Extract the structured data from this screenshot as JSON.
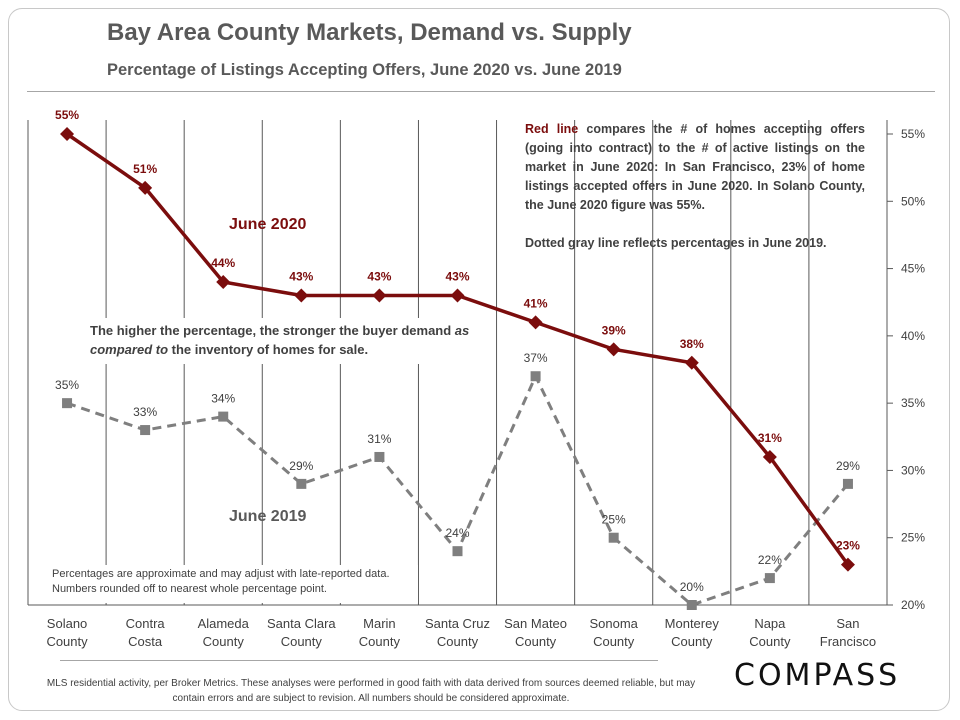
{
  "header": {
    "title": "Bay Area County Markets, Demand vs. Supply",
    "subtitle": "Percentage of Listings Accepting Offers, June 2020 vs. June 2019"
  },
  "notes": {
    "red_lead": "Red line",
    "red_text": " compares the # of homes accepting offers (going into contract) to the # of active listings on the market in June 2020: In San Francisco, 23% of home listings accepted offers in June 2020. In Solano County, the June 2020 figure was 55%.",
    "gray_text": "Dotted gray line reflects percentages in June 2019.",
    "demand_a": "The higher the percentage, the stronger the buyer demand ",
    "demand_b": "as compared to",
    "demand_c": " the inventory of homes for sale.",
    "approx": "Percentages are approximate and may adjust with late-reported data. Numbers rounded off to nearest whole percentage point."
  },
  "footer": {
    "source": "MLS residential activity, per Broker Metrics. These analyses were performed in good faith with data derived from sources deemed reliable, but may contain errors and are subject to revision. All numbers should be considered approximate.",
    "logo": "COMPASS"
  },
  "colors": {
    "june2020": "#7b0d0d",
    "june2019": "#7f7f7f",
    "grid": "#595959",
    "text": "#404040"
  },
  "chart_data": {
    "type": "line",
    "title": "Bay Area County Markets, Demand vs. Supply",
    "subtitle": "Percentage of Listings Accepting Offers, June 2020 vs. June 2019",
    "categories": [
      [
        "Solano",
        "County"
      ],
      [
        "Contra",
        "Costa"
      ],
      [
        "Alameda",
        "County"
      ],
      [
        "Santa Clara",
        "County"
      ],
      [
        "Marin",
        "County"
      ],
      [
        "Santa Cruz",
        "County"
      ],
      [
        "San Mateo",
        "County"
      ],
      [
        "Sonoma",
        "County"
      ],
      [
        "Monterey",
        "County"
      ],
      [
        "Napa",
        "County"
      ],
      [
        "San",
        "Francisco"
      ]
    ],
    "series": [
      {
        "name": "June 2020",
        "values": [
          55,
          51,
          44,
          43,
          43,
          43,
          41,
          39,
          38,
          31,
          23
        ],
        "style": "solid-diamond"
      },
      {
        "name": "June 2019",
        "values": [
          35,
          33,
          34,
          29,
          31,
          24,
          37,
          25,
          20,
          22,
          29
        ],
        "style": "dashed-square"
      }
    ],
    "ylim": [
      20,
      55
    ],
    "yticks": [
      20,
      25,
      30,
      35,
      40,
      45,
      50,
      55
    ],
    "y_axis_position": "right",
    "label_suffix": "%",
    "grid": "vertical"
  }
}
